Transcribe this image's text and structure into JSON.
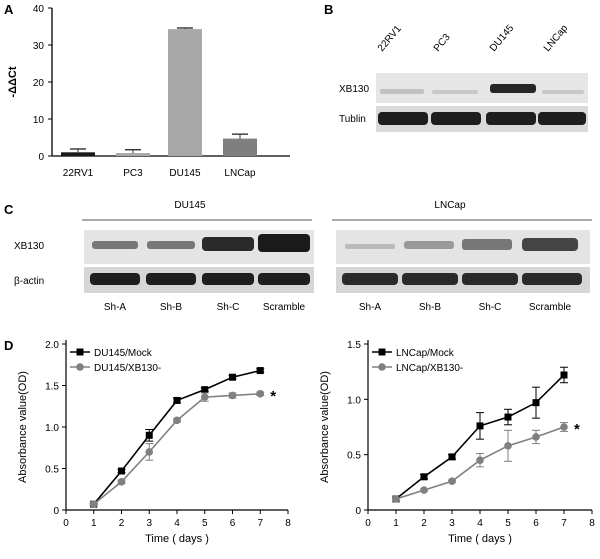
{
  "panel_labels": [
    "A",
    "B",
    "C",
    "D"
  ],
  "colors": {
    "bar_dark": "#1a1a1a",
    "bar_light": "#a8a8a8",
    "bar_mid": "#7f7f7f",
    "series_black": "#000000",
    "series_gray": "#808080",
    "blot_bg": "#e8e8e8",
    "band": "#2b2b2b"
  },
  "panel_b": {
    "lanes": [
      "22RV1",
      "PC3",
      "DU145",
      "LNCap"
    ],
    "rows": [
      "XB130",
      "Tublin"
    ]
  },
  "panel_c": {
    "groups": [
      {
        "title": "DU145",
        "lanes": [
          "Sh-A",
          "Sh-B",
          "Sh-C",
          "Scramble"
        ]
      },
      {
        "title": "LNCap",
        "lanes": [
          "Sh-A",
          "Sh-B",
          "Sh-C",
          "Scramble"
        ]
      }
    ],
    "rows": [
      "XB130",
      "β-actin"
    ]
  },
  "chart_data": [
    {
      "type": "bar",
      "panel": "A",
      "categories": [
        "22RV1",
        "PC3",
        "DU145",
        "LNCap"
      ],
      "values": [
        1.0,
        0.8,
        34.3,
        4.7
      ],
      "errors": [
        0.9,
        0.9,
        0.3,
        1.2
      ],
      "ylabel": "-ΔΔCt",
      "ylim": [
        0,
        40
      ],
      "yticks": [
        "0",
        "10",
        "20",
        "30",
        "40"
      ],
      "grid": false
    },
    {
      "type": "line",
      "panel": "D-left",
      "xlabel": "Time ( days )",
      "ylabel": "Absorbance value(OD)",
      "xlim": [
        0,
        8
      ],
      "ylim": [
        0,
        2.0
      ],
      "xticks": [
        "0",
        "1",
        "2",
        "3",
        "4",
        "5",
        "6",
        "7",
        "8"
      ],
      "yticks": [
        "0",
        "0.5",
        "1.0",
        "1.5",
        "2.0"
      ],
      "legend": "top-left",
      "annotation": "*",
      "series": [
        {
          "name": "DU145/Mock",
          "x": [
            1,
            2,
            3,
            4,
            5,
            6,
            7
          ],
          "y": [
            0.07,
            0.47,
            0.9,
            1.32,
            1.45,
            1.6,
            1.68
          ],
          "err": [
            0.01,
            0.02,
            0.07,
            0.03,
            0.02,
            0.02,
            0.02
          ]
        },
        {
          "name": "DU145/XB130-",
          "x": [
            1,
            2,
            3,
            4,
            5,
            6,
            7
          ],
          "y": [
            0.07,
            0.34,
            0.7,
            1.08,
            1.36,
            1.38,
            1.4
          ],
          "err": [
            0.01,
            0.02,
            0.1,
            0.02,
            0.05,
            0.03,
            0.02
          ]
        }
      ]
    },
    {
      "type": "line",
      "panel": "D-right",
      "xlabel": "Time ( days )",
      "ylabel": "Absorbance value(OD)",
      "xlim": [
        0,
        8
      ],
      "ylim": [
        0,
        1.5
      ],
      "xticks": [
        "0",
        "1",
        "2",
        "3",
        "4",
        "5",
        "6",
        "7",
        "8"
      ],
      "yticks": [
        "0",
        "0.5",
        "1.0",
        "1.5"
      ],
      "legend": "top-left",
      "annotation": "*",
      "series": [
        {
          "name": "LNCap/Mock",
          "x": [
            1,
            2,
            3,
            4,
            5,
            6,
            7
          ],
          "y": [
            0.1,
            0.3,
            0.48,
            0.76,
            0.84,
            0.97,
            1.22
          ],
          "err": [
            0.01,
            0.02,
            0.02,
            0.12,
            0.07,
            0.14,
            0.07
          ]
        },
        {
          "name": "LNCap/XB130-",
          "x": [
            1,
            2,
            3,
            4,
            5,
            6,
            7
          ],
          "y": [
            0.1,
            0.18,
            0.26,
            0.45,
            0.58,
            0.66,
            0.75
          ],
          "err": [
            0.01,
            0.01,
            0.01,
            0.06,
            0.14,
            0.06,
            0.04
          ]
        }
      ]
    }
  ]
}
